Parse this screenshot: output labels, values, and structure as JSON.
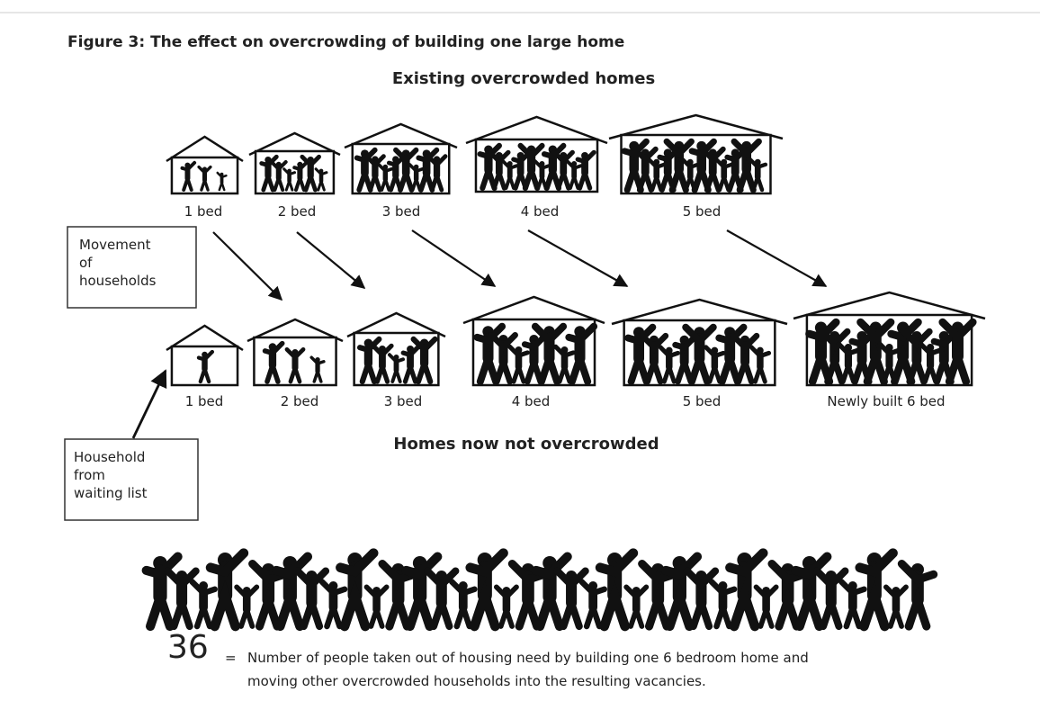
{
  "title": "Figure 3:  The effect on overcrowding of building one large home",
  "existing_heading": "Existing overcrowded homes",
  "existing_homes": [
    "1 bed",
    "2 bed",
    "3 bed",
    "4 bed",
    "5 bed"
  ],
  "movement_box": [
    "Movement",
    "of",
    "households"
  ],
  "new_homes": [
    "1 bed",
    "2 bed",
    "3 bed",
    "4 bed",
    "5 bed",
    "Newly built 6 bed"
  ],
  "result_heading": "Homes now not overcrowded",
  "waiting_box": [
    "Household",
    "from",
    "waiting list"
  ],
  "total": {
    "number": 36,
    "equals": "=",
    "description": [
      "Number of people taken out of housing need by building one 6 bedroom home and",
      "moving other overcrowded households into the resulting vacancies."
    ]
  }
}
